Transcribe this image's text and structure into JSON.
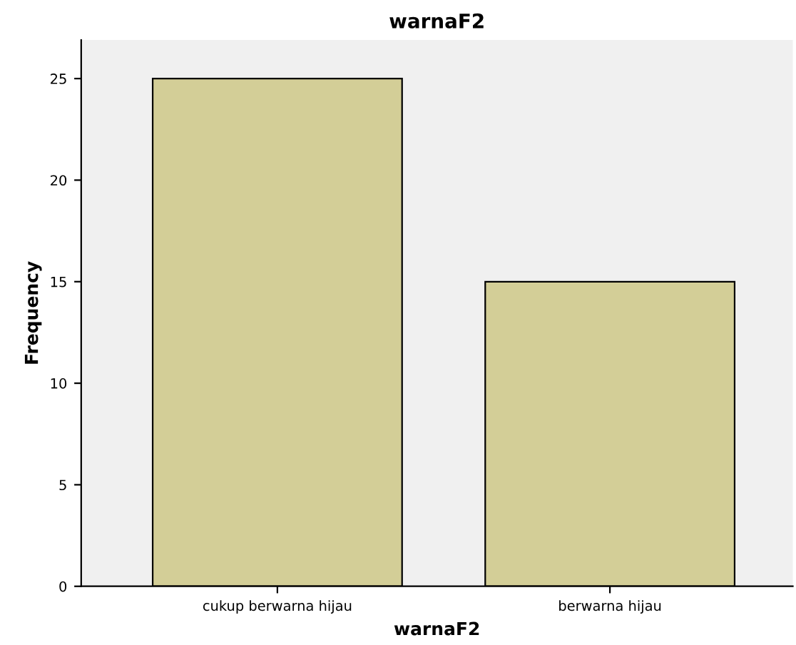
{
  "chart_data": {
    "type": "bar",
    "title": "warnaF2",
    "xlabel": "warnaF2",
    "ylabel": "Frequency",
    "categories": [
      "cukup berwarna hijau",
      "berwarna hijau"
    ],
    "values": [
      25,
      15
    ],
    "color": "#d3ce97",
    "ylim": [
      0,
      26.9
    ],
    "yticks": [
      0,
      5,
      10,
      15,
      20,
      25
    ],
    "grid": false
  }
}
